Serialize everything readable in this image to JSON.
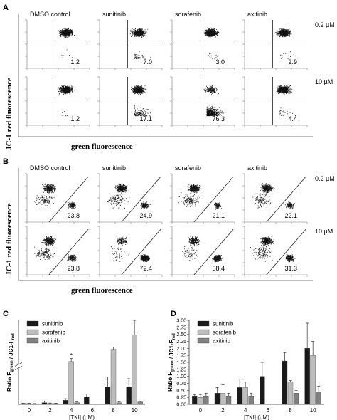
{
  "panels": {
    "A": {
      "label": "A",
      "y_title": "JC-1 red fluorescence",
      "x_title": "green fluorescence",
      "columns": [
        "DMSO control",
        "sunitinib",
        "sorafenib",
        "axitinib"
      ],
      "rows": [
        "0.2 µM",
        "10 µM"
      ],
      "values": [
        [
          "1.2",
          "7.0",
          "3.0",
          "2.9"
        ],
        [
          "1.2",
          "17.1",
          "76.3",
          "4.4"
        ]
      ]
    },
    "B": {
      "label": "B",
      "y_title": "JC-1 red fluorescence",
      "x_title": "green fluorescence",
      "columns": [
        "DMSO control",
        "sunitinib",
        "sorafenib",
        "axitinib"
      ],
      "rows": [
        "0.2 µM",
        "10 µM"
      ],
      "values": [
        [
          "23.8",
          "24.9",
          "21.1",
          "22.1"
        ],
        [
          "23.8",
          "72.4",
          "58.4",
          "31.3"
        ]
      ]
    },
    "C": {
      "label": "C"
    },
    "D": {
      "label": "D"
    }
  },
  "chart_data": [
    {
      "type": "bar",
      "panel": "C",
      "ylabel": "Ratio F_green / JC1-F_red",
      "xlabel": "[TKI] (µM)",
      "categories": [
        "0",
        "2",
        "4",
        "6",
        "8",
        "10"
      ],
      "y_axis_break": true,
      "series": [
        {
          "name": "sunitinib",
          "color": "#1a1a1a",
          "values": [
            0.05,
            0.1,
            0.25,
            0.45,
            1.1,
            1.1
          ]
        },
        {
          "name": "sorafenib",
          "color": "#bdbdbd",
          "values": [
            0.05,
            0.05,
            3.0,
            null,
            8.0,
            14.0
          ]
        },
        {
          "name": "axitinib",
          "color": "#808080",
          "values": [
            0.03,
            0.05,
            0.1,
            null,
            0.1,
            0.15
          ]
        }
      ],
      "errors": [
        [
          0.02,
          0.1,
          0.1,
          0.2,
          0.6,
          0.5
        ],
        [
          0.02,
          0.03,
          1.2,
          null,
          1.0,
          6.0
        ],
        [
          0.02,
          0.02,
          0.05,
          null,
          0.05,
          0.05
        ]
      ],
      "annotations": [
        "*"
      ]
    },
    {
      "type": "bar",
      "panel": "D",
      "ylabel": "Ratio F_green / JC1-F_red",
      "xlabel": "[TKI] (µM)",
      "ylim": [
        0,
        3.0
      ],
      "yticks": [
        "0.00",
        "0.25",
        "0.50",
        "0.75",
        "1.00",
        "1.25",
        "1.50",
        "1.75",
        "2.00",
        "2.25",
        "2.50",
        "2.75",
        "3.00"
      ],
      "categories": [
        "0",
        "2",
        "4",
        "6",
        "8",
        "10"
      ],
      "series": [
        {
          "name": "sunitinib",
          "color": "#1a1a1a",
          "values": [
            0.3,
            0.4,
            0.6,
            1.0,
            1.55,
            2.0
          ]
        },
        {
          "name": "sorafenib",
          "color": "#bdbdbd",
          "values": [
            0.25,
            0.4,
            0.6,
            null,
            0.8,
            1.75
          ]
        },
        {
          "name": "axitinib",
          "color": "#808080",
          "values": [
            0.3,
            0.3,
            0.3,
            null,
            0.4,
            0.45
          ]
        }
      ],
      "errors": [
        [
          0.05,
          0.2,
          0.3,
          0.5,
          0.3,
          0.9
        ],
        [
          0.1,
          0.3,
          0.2,
          null,
          0.05,
          0.5
        ],
        [
          0.1,
          0.1,
          0.1,
          null,
          0.1,
          0.2
        ]
      ]
    }
  ]
}
